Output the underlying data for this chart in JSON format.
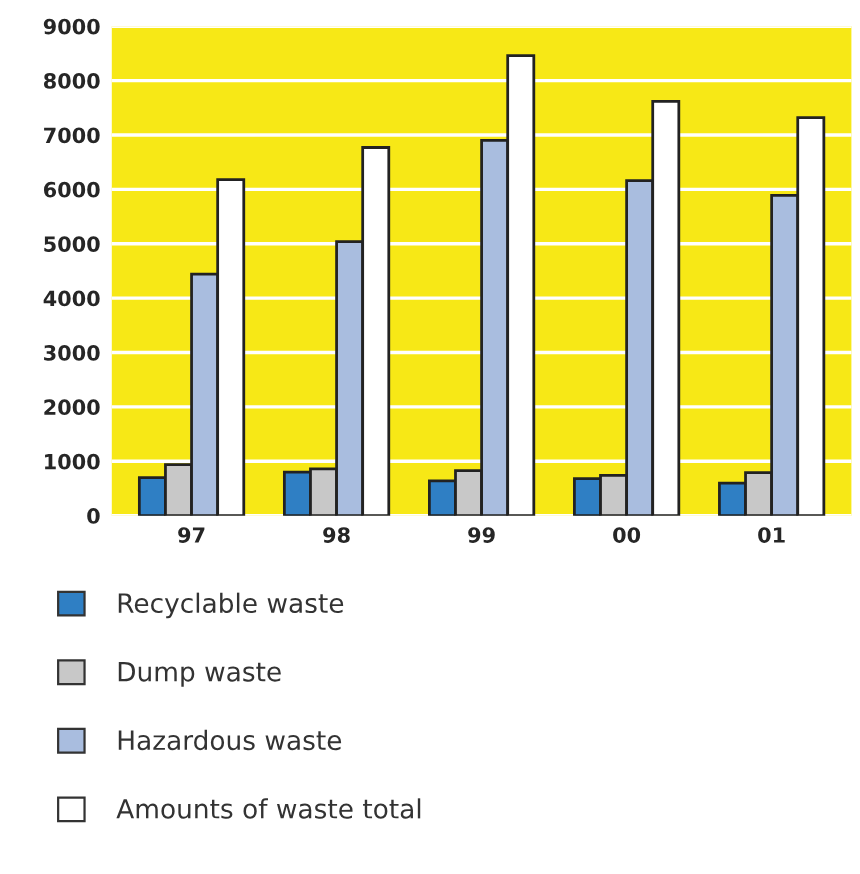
{
  "chart_data": {
    "type": "bar",
    "categories": [
      "97",
      "98",
      "99",
      "00",
      "01"
    ],
    "series": [
      {
        "name": "Recyclable waste",
        "color": "#2f7fc4",
        "values": [
          700,
          800,
          640,
          680,
          600
        ]
      },
      {
        "name": "Dump waste",
        "color": "#c8c8c8",
        "values": [
          940,
          860,
          830,
          740,
          790
        ]
      },
      {
        "name": "Hazardous waste",
        "color": "#a9bddf",
        "values": [
          4440,
          5040,
          6900,
          6160,
          5890
        ]
      },
      {
        "name": "Amounts of waste total",
        "color": "#ffffff",
        "values": [
          6180,
          6770,
          8460,
          7620,
          7320
        ]
      }
    ],
    "ylim": [
      0,
      9000
    ],
    "yticks": [
      0,
      1000,
      2000,
      3000,
      4000,
      5000,
      6000,
      7000,
      8000,
      9000
    ],
    "grid": "y",
    "legend": "bottom"
  }
}
